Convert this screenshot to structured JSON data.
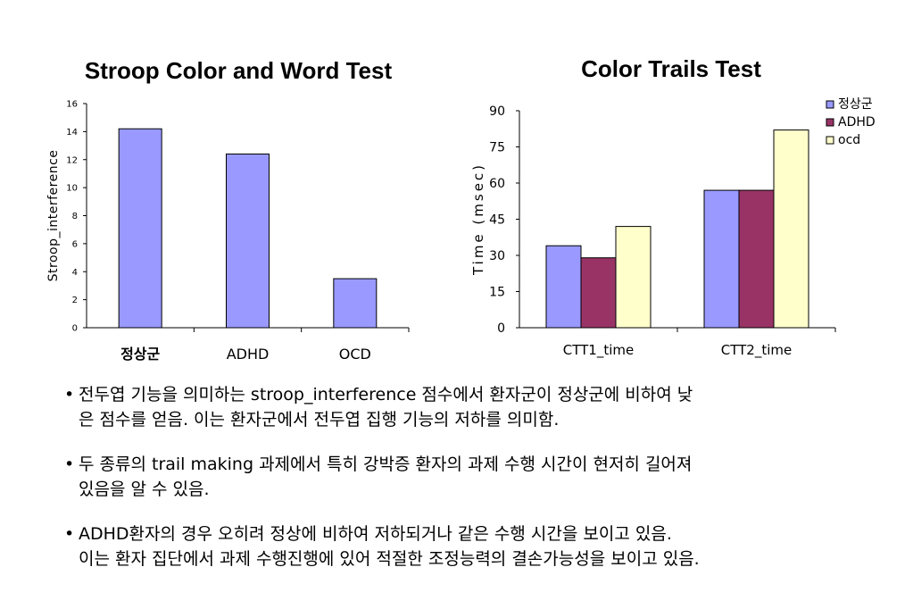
{
  "chart_data": [
    {
      "type": "bar",
      "title": "Stroop Color and Word Test",
      "xlabel": "",
      "ylabel": "Stroop_interference",
      "categories": [
        "정상군",
        "ADHD",
        "OCD"
      ],
      "values": [
        14.2,
        12.4,
        3.5
      ],
      "ylim": [
        0,
        16
      ],
      "yticks": [
        0,
        2,
        4,
        6,
        8,
        10,
        12,
        14,
        16
      ],
      "grid": false,
      "bar_color": "#9999ff"
    },
    {
      "type": "bar",
      "title": "Color Trails Test",
      "xlabel": "",
      "ylabel": "Time (msec)",
      "categories": [
        "CTT1_time",
        "CTT2_time"
      ],
      "series": [
        {
          "name": "정상군",
          "values": [
            34,
            57
          ],
          "color": "#9999ff"
        },
        {
          "name": "ADHD",
          "values": [
            29,
            57
          ],
          "color": "#993366"
        },
        {
          "name": "ocd",
          "values": [
            42,
            82
          ],
          "color": "#ffffcc"
        }
      ],
      "ylim": [
        0,
        90
      ],
      "yticks": [
        0,
        15,
        30,
        45,
        60,
        75,
        90
      ],
      "grid": false,
      "legend": "top-right"
    }
  ],
  "bullets": [
    [
      "전두엽 기능을 의미하는 stroop_interference 점수에서 환자군이 정상군에 비하여 낮",
      "은 점수를 얻음. 이는 환자군에서 전두엽 집행 기능의 저하를 의미함."
    ],
    [
      "두 종류의 trail making 과제에서 특히 강박증 환자의 과제 수행 시간이 현저히 길어져",
      "있음을 알 수 있음."
    ],
    [
      "ADHD환자의 경우 오히려 정상에 비하여 저하되거나 같은 수행 시간을 보이고 있음.",
      "이는 환자 집단에서 과제 수행진행에 있어 적절한 조정능력의 결손가능성을 보이고 있음."
    ]
  ],
  "bullet_symbol": "•"
}
